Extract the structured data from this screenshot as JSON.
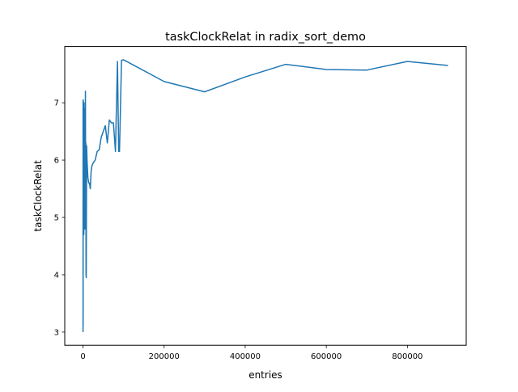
{
  "figure": {
    "background": "#ffffff",
    "line_color": "#1f77b4"
  },
  "chart_data": {
    "type": "line",
    "title": "taskClockRelat in radix_sort_demo",
    "xlabel": "entries",
    "ylabel": "taskClockRelat",
    "xlim": [
      -45000,
      945000
    ],
    "ylim": [
      2.77,
      7.98
    ],
    "xticks": [
      0,
      200000,
      400000,
      600000,
      800000
    ],
    "xtick_labels": [
      "0",
      "200000",
      "400000",
      "600000",
      "800000"
    ],
    "yticks": [
      3,
      4,
      5,
      6,
      7
    ],
    "ytick_labels": [
      "3",
      "4",
      "5",
      "6",
      "7"
    ],
    "grid": false,
    "legend": "none",
    "series": [
      {
        "color": "#1f77b4",
        "x": [
          100,
          200,
          300,
          400,
          500,
          600,
          800,
          1000,
          1500,
          2000,
          2500,
          3000,
          3500,
          4000,
          5000,
          5500,
          6000,
          6500,
          7000,
          7500,
          8000,
          9000,
          10000,
          12000,
          14000,
          16000,
          18000,
          20000,
          22000,
          25000,
          30000,
          35000,
          40000,
          45000,
          50000,
          55000,
          60000,
          65000,
          70000,
          75000,
          80000,
          85000,
          88000,
          90000,
          95000,
          100000,
          200000,
          300000,
          400000,
          500000,
          600000,
          700000,
          800000,
          900000
        ],
        "y": [
          3.0,
          7.05,
          3.1,
          6.9,
          6.2,
          7.05,
          4.9,
          7.0,
          5.8,
          4.7,
          7.0,
          6.0,
          6.4,
          4.8,
          6.9,
          4.8,
          7.2,
          5.6,
          6.3,
          4.0,
          3.95,
          6.25,
          6.0,
          5.7,
          5.6,
          5.6,
          5.5,
          5.8,
          5.9,
          5.95,
          6.0,
          6.15,
          6.18,
          6.4,
          6.5,
          6.6,
          6.3,
          6.7,
          6.65,
          6.65,
          6.15,
          7.72,
          6.15,
          6.15,
          7.74,
          7.75,
          7.37,
          7.19,
          7.45,
          7.67,
          7.58,
          7.57,
          7.72,
          7.65
        ]
      }
    ]
  }
}
